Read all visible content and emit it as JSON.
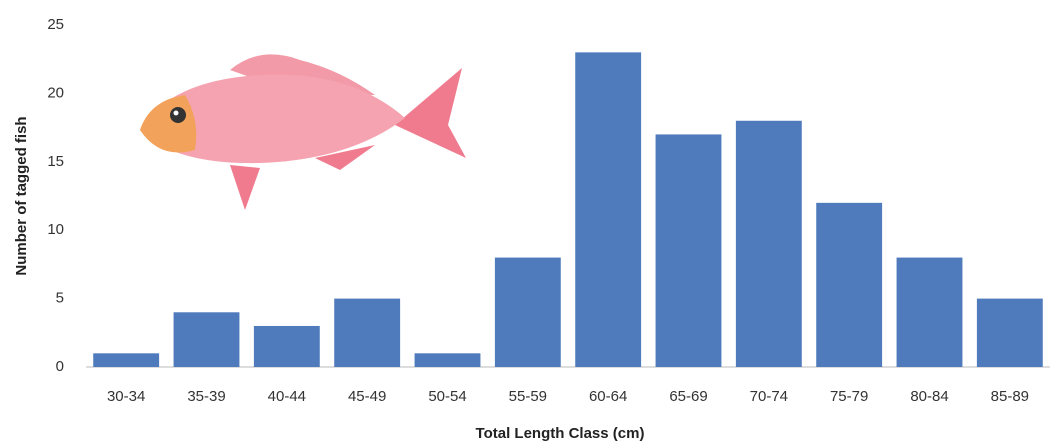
{
  "chart_data": {
    "type": "bar",
    "x_label": "Total Length Class (cm)",
    "y_label": "Number of tagged fish",
    "categories": [
      "30-34",
      "35-39",
      "40-44",
      "45-49",
      "50-54",
      "55-59",
      "60-64",
      "65-69",
      "70-74",
      "75-79",
      "80-84",
      "85-89"
    ],
    "values": [
      1,
      4,
      3,
      5,
      1,
      8,
      23,
      17,
      18,
      12,
      8,
      5
    ],
    "color": "#4f7bbd",
    "ylim": [
      0,
      25
    ],
    "yticks": [
      0,
      5,
      10,
      15,
      20,
      25
    ],
    "grid": false
  }
}
